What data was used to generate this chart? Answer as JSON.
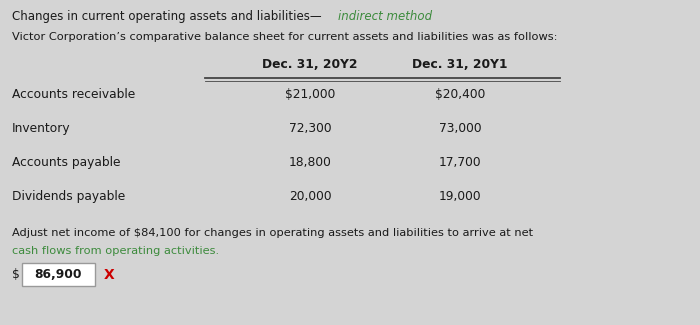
{
  "title_normal": "Changes in current operating assets and liabilities—",
  "title_italic": "indirect method",
  "subtitle": "Victor Corporation’s comparative balance sheet for current assets and liabilities was as follows:",
  "col_headers": [
    "Dec. 31, 20Y2",
    "Dec. 31, 20Y1"
  ],
  "rows": [
    [
      "Accounts receivable",
      "$21,000",
      "$20,400"
    ],
    [
      "Inventory",
      "72,300",
      "73,000"
    ],
    [
      "Accounts payable",
      "18,800",
      "17,700"
    ],
    [
      "Dividends payable",
      "20,000",
      "19,000"
    ]
  ],
  "footer_line1": "Adjust net income of $84,100 for changes in operating assets and liabilities to arrive at net",
  "footer_line2": "cash flows from operating activities.",
  "dollar_sign": "$",
  "answer": "86,900",
  "answer_wrong": "X",
  "bg_color": "#d4d4d4",
  "text_color": "#1a1a1a",
  "green_color": "#3d8b3d",
  "red_color": "#cc0000",
  "line_color": "#444444",
  "answer_box_color": "#ffffff",
  "answer_box_edge": "#999999"
}
